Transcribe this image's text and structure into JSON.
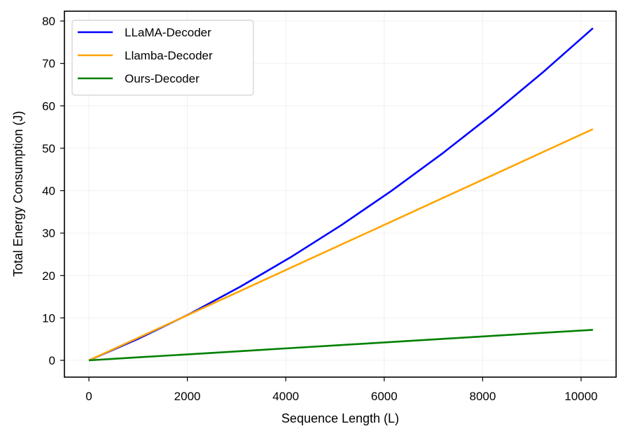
{
  "chart_data": {
    "type": "line",
    "title": "",
    "xlabel": "Sequence Length (L)",
    "ylabel": "Total Energy Consumption (J)",
    "xlim": [
      -640,
      10880
    ],
    "ylim": [
      -4,
      82.3
    ],
    "xticks": [
      0,
      2000,
      4000,
      6000,
      8000,
      10000
    ],
    "xtick_labels": [
      "0",
      "2000",
      "4000",
      "6000",
      "8000",
      "10000"
    ],
    "yticks": [
      0,
      10,
      20,
      30,
      40,
      50,
      60,
      70,
      80
    ],
    "ytick_labels": [
      "0",
      "10",
      "20",
      "30",
      "40",
      "50",
      "60",
      "70",
      "80"
    ],
    "grid": true,
    "legend_position": "upper left",
    "x": [
      0,
      1024,
      2048,
      3072,
      4096,
      5120,
      6144,
      7168,
      8192,
      9216,
      10240
    ],
    "series": [
      {
        "name": "LLaMA-Decoder",
        "color": "#0000ff",
        "values": [
          0,
          5.19,
          10.96,
          17.33,
          24.28,
          31.81,
          39.94,
          48.65,
          57.95,
          67.83,
          78.3
        ]
      },
      {
        "name": "Llamba-Decoder",
        "color": "#ffa500",
        "values": [
          0,
          5.45,
          10.9,
          16.35,
          21.8,
          27.25,
          32.7,
          38.15,
          43.6,
          49.05,
          54.5
        ]
      },
      {
        "name": "Ours-Decoder",
        "color": "#008000",
        "values": [
          0,
          0.72,
          1.44,
          2.16,
          2.88,
          3.6,
          4.32,
          5.04,
          5.76,
          6.48,
          7.2
        ]
      }
    ]
  }
}
